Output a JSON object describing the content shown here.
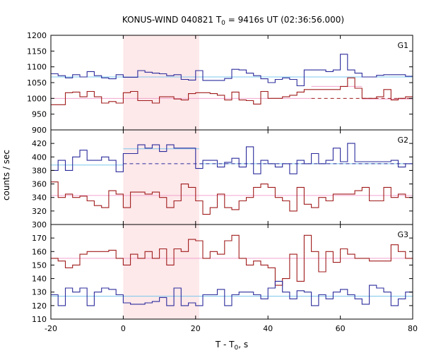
{
  "chart_data": {
    "type": "line",
    "title_prefix": "KONUS-WIND 040821 T",
    "title_sub": "0",
    "title_suffix": " = 9416s UT (02:36:56.000)",
    "xlabel_prefix": "T - T",
    "xlabel_sub": "0",
    "xlabel_suffix": ", s",
    "ylabel": "counts / sec",
    "xlim": [
      -20,
      80
    ],
    "xticks": [
      "-20",
      "0",
      "20",
      "40",
      "60",
      "80"
    ],
    "shaded_interval": [
      0,
      21
    ],
    "colors": {
      "blue": "#2b2b9c",
      "dark_red": "#a01b1b",
      "light_blue": "#7ec8ec",
      "pink": "#f2a5cf",
      "shade": "#fde8ea"
    },
    "panels": [
      {
        "label": "G1",
        "ylim": [
          900,
          1200
        ],
        "yticks": [
          900,
          950,
          1000,
          1050,
          1100,
          1150,
          1200
        ],
        "bins": [
          -20,
          -18,
          -16,
          -14,
          -12,
          -10,
          -8,
          -6,
          -4,
          -2,
          0,
          2,
          4,
          6,
          8,
          10,
          12,
          14,
          16,
          18,
          20,
          22,
          24,
          26,
          28,
          30,
          32,
          34,
          36,
          38,
          40,
          42,
          44,
          46,
          48,
          50,
          52,
          54,
          56,
          58,
          60,
          62,
          64,
          66,
          68,
          70,
          72,
          74,
          76,
          78,
          80
        ],
        "series": [
          {
            "color": "blue",
            "values": [
              1078,
              1072,
              1065,
              1075,
              1068,
              1085,
              1072,
              1065,
              1062,
              1075,
              1067,
              1067,
              1088,
              1083,
              1080,
              1078,
              1072,
              1075,
              1060,
              1058,
              1088,
              1057,
              1057,
              1057,
              1063,
              1092,
              1090,
              1080,
              1072,
              1062,
              1050,
              1060,
              1065,
              1060,
              1040,
              1090,
              1090,
              1090,
              1085,
              1090,
              1140,
              1090,
              1080,
              1068,
              1068,
              1073,
              1075,
              1075,
              1075,
              1070
            ]
          },
          {
            "color": "dark_red",
            "values": [
              980,
              980,
              1018,
              1020,
              1005,
              1022,
              1005,
              985,
              990,
              985,
              1018,
              1022,
              993,
              993,
              985,
              1005,
              1005,
              998,
              995,
              1015,
              1018,
              1018,
              1015,
              1010,
              995,
              1020,
              995,
              993,
              982,
              1022,
              1000,
              1000,
              1005,
              1010,
              1020,
              1028,
              1028,
              1028,
              1028,
              1028,
              1038,
              1065,
              1032,
              1000,
              1000,
              1005,
              1028,
              995,
              1000,
              1005
            ]
          }
        ],
        "fits": [
          {
            "color": "light_blue",
            "style": "solid",
            "from": -20,
            "to": 80,
            "value": 1068
          },
          {
            "color": "pink",
            "style": "solid",
            "from": -20,
            "to": 52,
            "value": 1000
          },
          {
            "color": "pink",
            "style": "solid",
            "from": 52,
            "to": 66,
            "value": 1038
          },
          {
            "color": "pink",
            "style": "solid",
            "from": 66,
            "to": 80,
            "value": 998
          },
          {
            "color": "dark_red",
            "style": "dashed",
            "from": 52,
            "to": 80,
            "value": 1000
          }
        ]
      },
      {
        "label": "G2",
        "ylim": [
          300,
          440
        ],
        "yticks": [
          300,
          320,
          340,
          360,
          380,
          400,
          420
        ],
        "bins": [
          -20,
          -18,
          -16,
          -14,
          -12,
          -10,
          -8,
          -6,
          -4,
          -2,
          0,
          2,
          4,
          6,
          8,
          10,
          12,
          14,
          16,
          18,
          20,
          22,
          24,
          26,
          28,
          30,
          32,
          34,
          36,
          38,
          40,
          42,
          44,
          46,
          48,
          50,
          52,
          54,
          56,
          58,
          60,
          62,
          64,
          66,
          68,
          70,
          72,
          74,
          76,
          78,
          80
        ],
        "series": [
          {
            "color": "blue",
            "values": [
              380,
              395,
              380,
              400,
              410,
              395,
              395,
              400,
              395,
              378,
              405,
              405,
              418,
              413,
              418,
              408,
              418,
              413,
              413,
              413,
              383,
              395,
              395,
              385,
              392,
              398,
              385,
              415,
              375,
              395,
              390,
              385,
              390,
              375,
              395,
              390,
              405,
              390,
              395,
              413,
              393,
              420,
              393,
              393,
              393,
              393,
              393,
              395,
              385,
              390
            ]
          },
          {
            "color": "dark_red",
            "values": [
              363,
              340,
              345,
              340,
              342,
              335,
              328,
              325,
              350,
              345,
              325,
              348,
              348,
              345,
              348,
              340,
              325,
              335,
              360,
              355,
              335,
              315,
              325,
              345,
              325,
              322,
              335,
              340,
              355,
              360,
              355,
              340,
              335,
              320,
              355,
              330,
              325,
              340,
              335,
              345,
              345,
              345,
              350,
              355,
              335,
              335,
              355,
              340,
              345,
              340
            ]
          }
        ],
        "fits": [
          {
            "color": "light_blue",
            "style": "solid",
            "from": -20,
            "to": 0,
            "value": 388
          },
          {
            "color": "light_blue",
            "style": "solid",
            "from": 0,
            "to": 21,
            "value": 412
          },
          {
            "color": "light_blue",
            "style": "solid",
            "from": 21,
            "to": 80,
            "value": 390
          },
          {
            "color": "blue",
            "style": "dashed",
            "from": 0,
            "to": 80,
            "value": 390
          },
          {
            "color": "pink",
            "style": "solid",
            "from": -20,
            "to": 80,
            "value": 343
          }
        ]
      },
      {
        "label": "G3",
        "ylim": [
          110,
          180
        ],
        "yticks": [
          110,
          120,
          130,
          140,
          150,
          160,
          170
        ],
        "bins": [
          -20,
          -18,
          -16,
          -14,
          -12,
          -10,
          -8,
          -6,
          -4,
          -2,
          0,
          2,
          4,
          6,
          8,
          10,
          12,
          14,
          16,
          18,
          20,
          22,
          24,
          26,
          28,
          30,
          32,
          34,
          36,
          38,
          40,
          42,
          44,
          46,
          48,
          50,
          52,
          54,
          56,
          58,
          60,
          62,
          64,
          66,
          68,
          70,
          72,
          74,
          76,
          78,
          80
        ],
        "series": [
          {
            "color": "dark_red",
            "values": [
              155,
              153,
              148,
              150,
              158,
              160,
              160,
              160,
              161,
              155,
              150,
              158,
              155,
              160,
              155,
              162,
              150,
              162,
              160,
              169,
              168,
              155,
              160,
              158,
              168,
              172,
              155,
              150,
              153,
              150,
              148,
              135,
              140,
              158,
              138,
              172,
              160,
              145,
              160,
              152,
              162,
              158,
              155,
              155,
              153,
              153,
              153,
              165,
              160,
              155
            ]
          },
          {
            "color": "blue",
            "values": [
              128,
              120,
              133,
              130,
              133,
              120,
              130,
              133,
              132,
              128,
              122,
              121,
              121,
              122,
              123,
              126,
              120,
              133,
              120,
              122,
              120,
              128,
              128,
              132,
              120,
              128,
              130,
              130,
              128,
              125,
              133,
              138,
              130,
              125,
              131,
              130,
              120,
              128,
              125,
              130,
              132,
              128,
              125,
              121,
              135,
              133,
              130,
              120,
              125,
              130
            ]
          }
        ],
        "fits": [
          {
            "color": "pink",
            "style": "solid",
            "from": -20,
            "to": 80,
            "value": 155
          },
          {
            "color": "light_blue",
            "style": "solid",
            "from": -20,
            "to": 80,
            "value": 127
          }
        ]
      }
    ]
  }
}
